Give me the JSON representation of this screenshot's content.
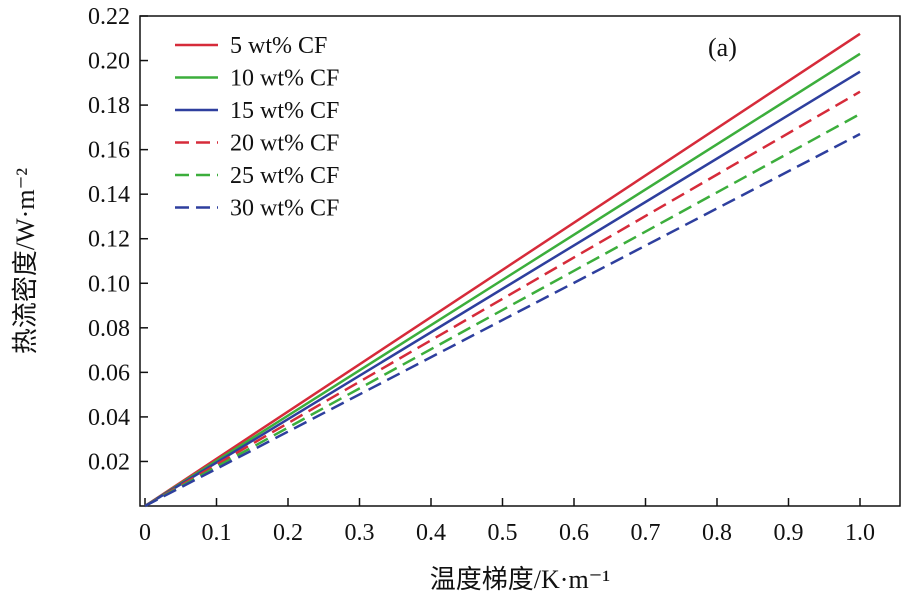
{
  "chart_data": {
    "type": "line",
    "panel_label": "(a)",
    "xlabel": "温度梯度/K·m⁻¹",
    "ylabel": "热流密度/W·m⁻²",
    "xlim": [
      0,
      1.0
    ],
    "ylim": [
      0,
      0.22
    ],
    "x_ticks": [
      "0",
      "0.1",
      "0.2",
      "0.3",
      "0.4",
      "0.5",
      "0.6",
      "0.7",
      "0.8",
      "0.9",
      "1.0"
    ],
    "y_ticks": [
      "0.02",
      "0.04",
      "0.06",
      "0.08",
      "0.10",
      "0.12",
      "0.14",
      "0.16",
      "0.18",
      "0.20",
      "0.22"
    ],
    "grid": false,
    "legend_position": "top-left",
    "series": [
      {
        "name": "5 wt% CF",
        "color": "#d62b3a",
        "dash": "solid",
        "x": [
          0,
          1.0
        ],
        "y": [
          0,
          0.212
        ]
      },
      {
        "name": "10 wt% CF",
        "color": "#3cae3c",
        "dash": "solid",
        "x": [
          0,
          1.0
        ],
        "y": [
          0,
          0.203
        ]
      },
      {
        "name": "15 wt% CF",
        "color": "#2e3f9e",
        "dash": "solid",
        "x": [
          0,
          1.0
        ],
        "y": [
          0,
          0.195
        ]
      },
      {
        "name": "20 wt% CF",
        "color": "#d62b3a",
        "dash": "dashed",
        "x": [
          0,
          1.0
        ],
        "y": [
          0,
          0.186
        ]
      },
      {
        "name": "25 wt% CF",
        "color": "#3cae3c",
        "dash": "dashed",
        "x": [
          0,
          1.0
        ],
        "y": [
          0,
          0.176
        ]
      },
      {
        "name": "30 wt% CF",
        "color": "#2e3f9e",
        "dash": "dashed",
        "x": [
          0,
          1.0
        ],
        "y": [
          0,
          0.167
        ]
      }
    ]
  }
}
